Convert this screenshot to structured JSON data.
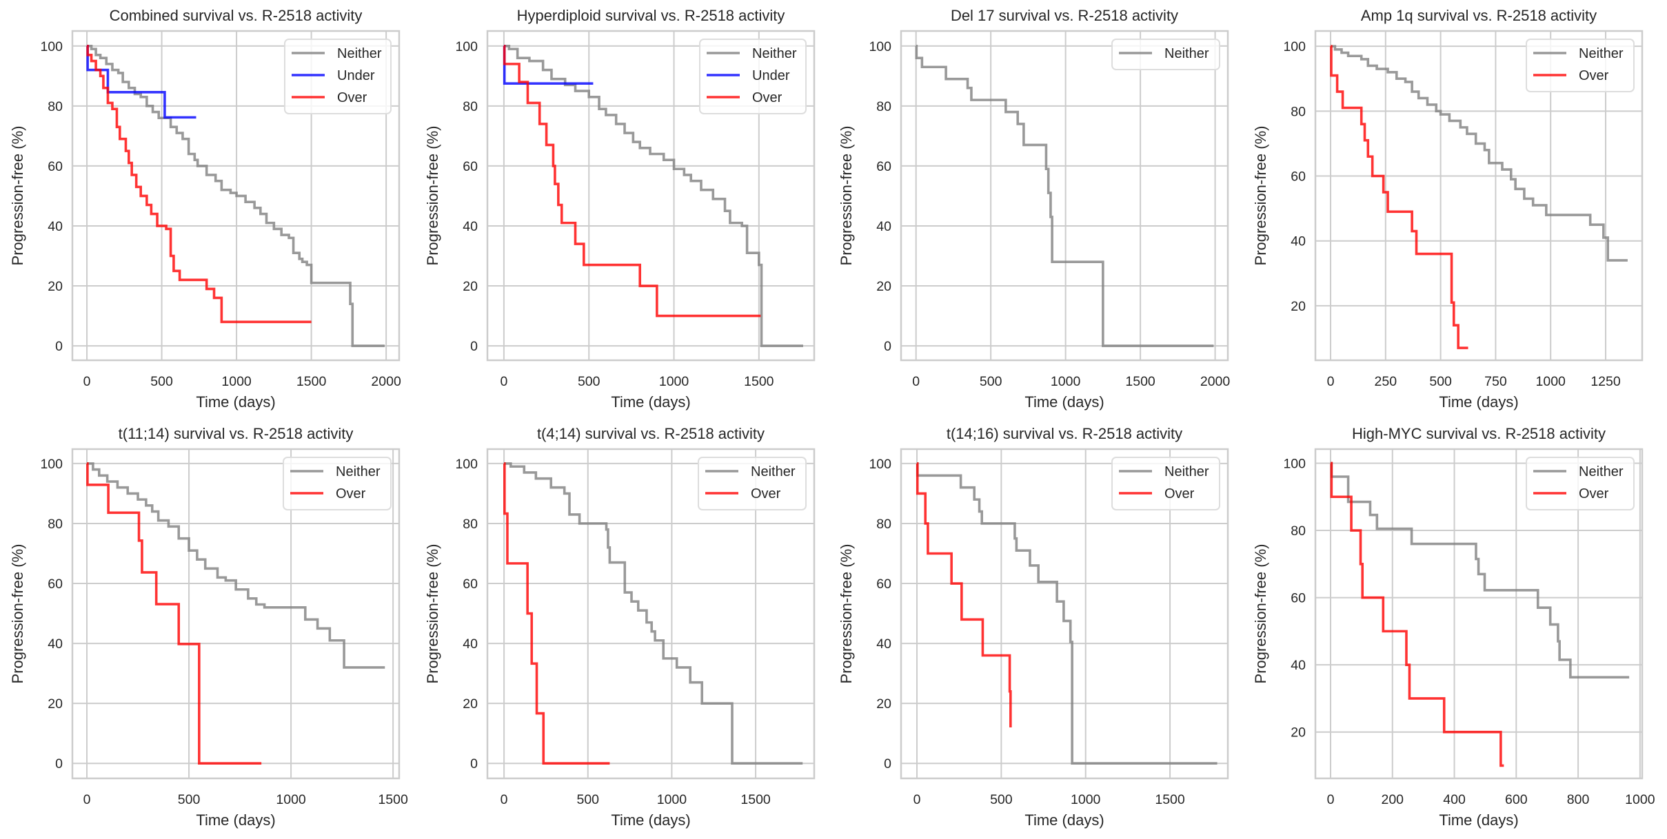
{
  "figure": {
    "colors": {
      "Neither": "#808080",
      "Under": "#0000ff",
      "Over": "#ff0000"
    }
  },
  "chart_data": [
    {
      "type": "line",
      "title": "Combined survival vs. R-2518 activity",
      "xlabel": "Time (days)",
      "ylabel": "Progression-free (%)",
      "xlim": [
        -97,
        2087
      ],
      "ylim": [
        -4.8,
        105
      ],
      "xticks": [
        0,
        500,
        1000,
        1500,
        2000
      ],
      "yticks": [
        0,
        20,
        40,
        60,
        80,
        100
      ],
      "grid": true,
      "legend_position": "top-right",
      "series": [
        {
          "name": "Neither",
          "x": [
            0,
            30,
            60,
            90,
            130,
            170,
            210,
            240,
            280,
            320,
            360,
            400,
            440,
            480,
            520,
            560,
            600,
            640,
            680,
            720,
            740,
            800,
            860,
            900,
            960,
            1000,
            1060,
            1120,
            1160,
            1200,
            1250,
            1300,
            1350,
            1380,
            1420,
            1440,
            1470,
            1500,
            1515,
            1760,
            1775,
            1990
          ],
          "y": [
            100,
            99,
            97,
            96,
            94,
            92,
            91,
            88,
            86,
            84,
            83,
            80,
            78,
            76,
            76,
            73,
            71,
            69,
            64,
            62,
            60,
            57,
            55,
            52,
            51,
            50,
            48,
            46,
            44,
            41,
            39,
            37,
            36,
            31,
            29,
            28,
            27,
            21,
            21,
            14,
            0,
            0
          ]
        },
        {
          "name": "Under",
          "x": [
            0,
            5,
            140,
            520,
            730
          ],
          "y": [
            100,
            92,
            84.6,
            76.2,
            76.2
          ]
        },
        {
          "name": "Over",
          "x": [
            0,
            5,
            30,
            60,
            90,
            110,
            140,
            170,
            200,
            220,
            260,
            280,
            300,
            330,
            360,
            400,
            430,
            470,
            530,
            560,
            580,
            620,
            700,
            800,
            850,
            900,
            1500
          ],
          "y": [
            100,
            97,
            95,
            92,
            90,
            86,
            81,
            79,
            73,
            69,
            65,
            61,
            57,
            53,
            50,
            47,
            44,
            40,
            39,
            30,
            25,
            22,
            22,
            19,
            16,
            8,
            8
          ]
        }
      ]
    },
    {
      "type": "line",
      "title": "Hyperdiploid survival vs. R-2518 activity",
      "xlabel": "Time (days)",
      "ylabel": "Progression-free (%)",
      "xlim": [
        -97,
        1825
      ],
      "ylim": [
        -4.8,
        105
      ],
      "xticks": [
        0,
        500,
        1000,
        1500
      ],
      "yticks": [
        0,
        20,
        40,
        60,
        80,
        100
      ],
      "grid": true,
      "legend_position": "top-right",
      "series": [
        {
          "name": "Neither",
          "x": [
            0,
            30,
            80,
            150,
            230,
            280,
            360,
            420,
            500,
            560,
            600,
            660,
            710,
            760,
            800,
            860,
            940,
            1000,
            1060,
            1100,
            1160,
            1230,
            1300,
            1330,
            1400,
            1430,
            1500,
            1515,
            1760
          ],
          "y": [
            100,
            99,
            96,
            95,
            92,
            89,
            87,
            85,
            83,
            79,
            77,
            74,
            71,
            68,
            66,
            64,
            62,
            59,
            57,
            55,
            52,
            49,
            45,
            41,
            40,
            31,
            27,
            0,
            0
          ]
        },
        {
          "name": "Under",
          "x": [
            0,
            3,
            525
          ],
          "y": [
            100,
            87.5,
            87.5
          ]
        },
        {
          "name": "Over",
          "x": [
            0,
            3,
            90,
            140,
            210,
            250,
            290,
            300,
            320,
            340,
            420,
            470,
            800,
            900,
            1510
          ],
          "y": [
            100,
            94,
            88,
            81,
            74,
            67,
            60,
            54,
            47,
            41,
            34,
            27,
            20,
            10,
            10
          ]
        }
      ]
    },
    {
      "type": "line",
      "title": "Del 17 survival vs. R-2518 activity",
      "xlabel": "Time (days)",
      "ylabel": "Progression-free (%)",
      "xlim": [
        -100,
        2085
      ],
      "ylim": [
        -4.8,
        105
      ],
      "xticks": [
        0,
        500,
        1000,
        1500,
        2000
      ],
      "yticks": [
        0,
        20,
        40,
        60,
        80,
        100
      ],
      "grid": true,
      "legend_position": "top-right",
      "series": [
        {
          "name": "Neither",
          "x": [
            0,
            3,
            40,
            200,
            345,
            370,
            600,
            680,
            720,
            870,
            885,
            900,
            910,
            1250,
            1990
          ],
          "y": [
            100,
            96,
            93,
            89,
            86,
            82,
            78,
            74,
            67,
            59,
            51,
            43,
            28,
            0,
            0
          ]
        }
      ]
    },
    {
      "type": "line",
      "title": "Amp 1q survival vs. R-2518 activity",
      "xlabel": "Time (days)",
      "ylabel": "Progression-free (%)",
      "xlim": [
        -69,
        1416
      ],
      "ylim": [
        3.2,
        104.7
      ],
      "xticks": [
        0,
        250,
        500,
        750,
        1000,
        1250
      ],
      "yticks": [
        20,
        40,
        60,
        80,
        100
      ],
      "grid": true,
      "legend_position": "top-right",
      "series": [
        {
          "name": "Neither",
          "x": [
            0,
            20,
            50,
            80,
            140,
            170,
            210,
            260,
            300,
            340,
            370,
            400,
            440,
            480,
            500,
            540,
            590,
            620,
            660,
            700,
            720,
            780,
            820,
            840,
            880,
            920,
            980,
            1180,
            1240,
            1260,
            1350
          ],
          "y": [
            100,
            99,
            98,
            97,
            96,
            94,
            93,
            92,
            90,
            89,
            86,
            84,
            82,
            80,
            79,
            77,
            75,
            73,
            70,
            68,
            64,
            62,
            59,
            56,
            53,
            51,
            48,
            45,
            41,
            34,
            34
          ]
        },
        {
          "name": "Over",
          "x": [
            0,
            3,
            30,
            55,
            140,
            155,
            170,
            190,
            240,
            260,
            370,
            390,
            550,
            560,
            580,
            625
          ],
          "y": [
            100,
            91,
            86,
            81,
            76,
            71,
            66,
            60,
            55,
            49,
            43,
            36,
            21,
            14,
            7,
            7
          ]
        }
      ]
    },
    {
      "type": "line",
      "title": "t(11;14) survival vs. R-2518 activity",
      "xlabel": "Time (days)",
      "ylabel": "Progression-free (%)",
      "xlim": [
        -71,
        1530
      ],
      "ylim": [
        -5,
        104.8
      ],
      "xticks": [
        0,
        500,
        1000,
        1500
      ],
      "yticks": [
        0,
        20,
        40,
        60,
        80,
        100
      ],
      "grid": true,
      "legend_position": "top-right",
      "series": [
        {
          "name": "Neither",
          "x": [
            0,
            30,
            60,
            100,
            150,
            200,
            250,
            290,
            320,
            350,
            400,
            450,
            500,
            540,
            580,
            640,
            680,
            730,
            790,
            830,
            870,
            1070,
            1130,
            1190,
            1260,
            1460
          ],
          "y": [
            100,
            98,
            96,
            94,
            92,
            90,
            88,
            86,
            84,
            81,
            79,
            75,
            71,
            68,
            65,
            62,
            61,
            58,
            55,
            53,
            52,
            48,
            45,
            41,
            32,
            32
          ]
        },
        {
          "name": "Over",
          "x": [
            0,
            3,
            105,
            255,
            270,
            340,
            450,
            550,
            855
          ],
          "y": [
            100,
            92.9,
            83.6,
            74.3,
            63.7,
            53.1,
            39.8,
            0,
            0
          ]
        }
      ]
    },
    {
      "type": "line",
      "title": "t(4;14) survival vs. R-2518 activity",
      "xlabel": "Time (days)",
      "ylabel": "Progression-free (%)",
      "xlim": [
        -99,
        1849
      ],
      "ylim": [
        -5,
        104.8
      ],
      "xticks": [
        0,
        500,
        1000,
        1500
      ],
      "yticks": [
        0,
        20,
        40,
        60,
        80,
        100
      ],
      "grid": true,
      "legend_position": "top-right",
      "series": [
        {
          "name": "Neither",
          "x": [
            0,
            40,
            120,
            190,
            280,
            360,
            390,
            450,
            590,
            610,
            620,
            630,
            710,
            720,
            760,
            800,
            850,
            880,
            900,
            950,
            1030,
            1110,
            1180,
            1360,
            1780
          ],
          "y": [
            100,
            99,
            97,
            95,
            92,
            90,
            83,
            80,
            80,
            78,
            72,
            67,
            67,
            57,
            54,
            51,
            47,
            44,
            41,
            35,
            32,
            27,
            20,
            0,
            0
          ]
        },
        {
          "name": "Over",
          "x": [
            0,
            3,
            20,
            140,
            165,
            195,
            235,
            630
          ],
          "y": [
            100,
            83.3,
            66.7,
            50,
            33.3,
            16.7,
            0,
            0
          ]
        }
      ]
    },
    {
      "type": "line",
      "title": "t(14;16) survival vs. R-2518 activity",
      "xlabel": "Time (days)",
      "ylabel": "Progression-free (%)",
      "xlim": [
        -94,
        1843
      ],
      "ylim": [
        -5,
        104.8
      ],
      "xticks": [
        0,
        500,
        1000,
        1500
      ],
      "yticks": [
        0,
        20,
        40,
        60,
        80,
        100
      ],
      "grid": true,
      "legend_position": "top-right",
      "series": [
        {
          "name": "Neither",
          "x": [
            0,
            3,
            260,
            340,
            370,
            385,
            580,
            590,
            670,
            720,
            830,
            870,
            910,
            920,
            1780
          ],
          "y": [
            100,
            96,
            92,
            88,
            84,
            80,
            75,
            71,
            66,
            60.5,
            54,
            47.5,
            40.5,
            0,
            0
          ]
        },
        {
          "name": "Over",
          "x": [
            0,
            3,
            50,
            65,
            205,
            265,
            390,
            550,
            555
          ],
          "y": [
            100,
            90,
            80,
            70,
            60,
            48,
            36,
            24,
            12
          ]
        }
      ]
    },
    {
      "type": "line",
      "title": "High-MYC survival vs. R-2518 activity",
      "xlabel": "Time (days)",
      "ylabel": "Progression-free (%)",
      "xlim": [
        -49,
        1007
      ],
      "ylim": [
        6.2,
        104.2
      ],
      "xticks": [
        0,
        200,
        400,
        600,
        800,
        1000
      ],
      "yticks": [
        20,
        40,
        60,
        80,
        100
      ],
      "grid": true,
      "legend_position": "top-right",
      "series": [
        {
          "name": "Neither",
          "x": [
            0,
            3,
            57,
            128,
            150,
            262,
            470,
            478,
            498,
            670,
            710,
            735,
            740,
            775,
            965
          ],
          "y": [
            100,
            96,
            88.5,
            84.6,
            80.5,
            76,
            71.5,
            67,
            62.2,
            57,
            52,
            47,
            41.5,
            36.3,
            36.3
          ]
        },
        {
          "name": "Over",
          "x": [
            0,
            3,
            67,
            97,
            103,
            170,
            245,
            255,
            367,
            550,
            560
          ],
          "y": [
            100,
            90,
            80,
            70,
            60,
            50,
            40,
            30,
            20,
            10,
            10
          ]
        }
      ]
    }
  ]
}
